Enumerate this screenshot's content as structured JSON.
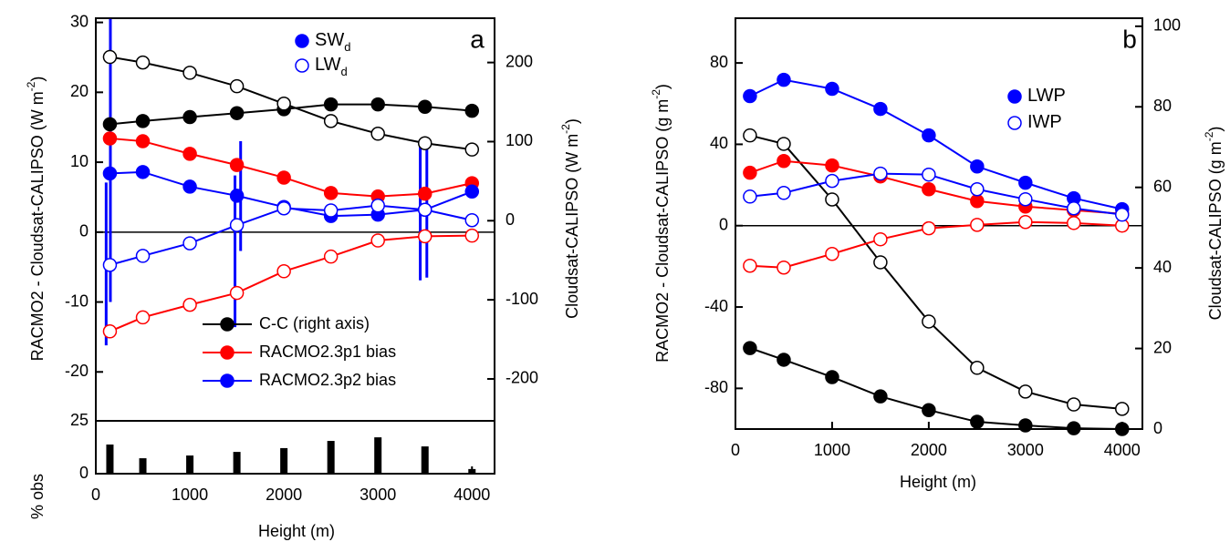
{
  "chart_data": [
    {
      "type": "line",
      "panel_label": "a",
      "xlim": [
        0,
        4240
      ],
      "ylim": [
        -27,
        30.6
      ],
      "yticks": [
        -20,
        -10,
        0,
        10,
        20,
        30
      ],
      "y2lim": [
        -253,
        256
      ],
      "y2ticks": [
        -200,
        -100,
        0,
        100,
        200
      ],
      "zero_line": true,
      "ylabel": [
        "RACMO2 - Cloudsat-CALIPSO (W m",
        "-2",
        ")"
      ],
      "y2label": [
        "Cloudsat-CALIPSO (W m",
        "-2",
        ")"
      ],
      "x": [
        150,
        500,
        1000,
        1500,
        2000,
        2500,
        3000,
        3500,
        4000
      ],
      "series": [
        {
          "color": "#000000",
          "marker": "filled",
          "axis": "y2",
          "values": [
            122,
            126,
            131,
            136,
            141,
            147,
            147,
            144,
            139
          ]
        },
        {
          "color": "#000000",
          "marker": "open",
          "axis": "y2",
          "values": [
            207,
            200,
            187,
            170,
            148,
            126,
            110,
            98,
            90
          ]
        },
        {
          "color": "#ff0000",
          "marker": "filled",
          "values": [
            13.4,
            13.0,
            11.2,
            9.6,
            7.8,
            5.6,
            5.1,
            5.5,
            7.0
          ]
        },
        {
          "color": "#ff0000",
          "marker": "open",
          "values": [
            -14.2,
            -12.2,
            -10.4,
            -8.7,
            -5.6,
            -3.5,
            -1.2,
            -0.6,
            -0.5
          ]
        },
        {
          "color": "#0000ff",
          "marker": "filled",
          "values": [
            8.4,
            8.6,
            6.5,
            5.2,
            3.6,
            2.3,
            2.5,
            3.2,
            5.8
          ]
        },
        {
          "color": "#0000ff",
          "marker": "open",
          "values": [
            -4.7,
            -3.4,
            -1.6,
            1.0,
            3.4,
            3.1,
            3.8,
            3.2,
            1.7
          ]
        }
      ],
      "spread": {
        "color": "#0000ff",
        "x": [
          110,
          155,
          1480,
          1540,
          3450,
          3520
        ],
        "low": [
          -16.2,
          -10,
          -13.6,
          -2.7,
          -6.9,
          -6.5
        ],
        "high": [
          7.1,
          30.5,
          8.1,
          13.0,
          12.7,
          12.7
        ]
      },
      "legend": [
        {
          "label": "C-C (right axis)",
          "color": "#000000"
        },
        {
          "label": "RACMO2.3p1 bias",
          "color": "#ff0000"
        },
        {
          "label": "RACMO2.3p2 bias",
          "color": "#0000ff"
        }
      ],
      "marker_legend": [
        {
          "label": "SW",
          "sub": "d",
          "color": "#0000ff",
          "marker": "filled"
        },
        {
          "label": "LW",
          "sub": "d",
          "color": "#0000ff",
          "marker": "open"
        }
      ]
    },
    {
      "type": "bar",
      "ylabel": "% obs",
      "xlim": [
        0,
        4240
      ],
      "ylim": [
        0,
        25
      ],
      "yticks": [
        0,
        25
      ],
      "xticks": [
        0,
        1000,
        2000,
        3000,
        4000
      ],
      "xlabel": "Height (m)",
      "x": [
        150,
        500,
        1000,
        1500,
        2000,
        2500,
        3000,
        3500,
        4000
      ],
      "values": [
        13.8,
        7.3,
        8.6,
        10.3,
        12.1,
        15.5,
        17.2,
        12.9,
        2.2
      ],
      "color": "#000000"
    },
    {
      "type": "line",
      "panel_label": "b",
      "xlim": [
        0,
        4210
      ],
      "ylim": [
        -100,
        102
      ],
      "yticks": [
        -80,
        -40,
        0,
        40,
        80
      ],
      "y2lim": [
        0,
        102
      ],
      "y2ticks": [
        0,
        20,
        40,
        60,
        80,
        100
      ],
      "zero_line": true,
      "xticks": [
        0,
        1000,
        2000,
        3000,
        4000
      ],
      "xlabel": "Height (m)",
      "ylabel": [
        "RACMO2 - Cloudsat-CALIPSO (g m",
        "-2",
        ")"
      ],
      "y2label": [
        "Cloudsat-CALIPSO (g m",
        "-2",
        ")"
      ],
      "x": [
        150,
        500,
        1000,
        1500,
        2000,
        2500,
        3000,
        3500,
        4000
      ],
      "series": [
        {
          "color": "#000000",
          "marker": "filled",
          "axis": "y2",
          "values": [
            20.1,
            17.2,
            12.9,
            8.1,
            4.7,
            1.8,
            0.9,
            0.2,
            0
          ]
        },
        {
          "color": "#000000",
          "marker": "open",
          "axis": "y2",
          "values": [
            72.9,
            70.8,
            57.0,
            41.4,
            26.7,
            15.2,
            9.3,
            6.1,
            5.0
          ]
        },
        {
          "color": "#ff0000",
          "marker": "filled",
          "values": [
            26.0,
            31.8,
            29.6,
            24.2,
            17.9,
            12.1,
            9.4,
            7.6,
            5.8
          ]
        },
        {
          "color": "#ff0000",
          "marker": "open",
          "values": [
            -19.7,
            -20.6,
            -13.9,
            -6.7,
            -1.3,
            0.4,
            1.8,
            1.3,
            0
          ]
        },
        {
          "color": "#0000ff",
          "marker": "filled",
          "values": [
            63.7,
            71.7,
            67.3,
            57.4,
            44.4,
            29.1,
            21.1,
            13.5,
            8.1
          ]
        },
        {
          "color": "#0000ff",
          "marker": "open",
          "values": [
            14.3,
            16.1,
            22.0,
            25.6,
            25.1,
            17.9,
            13.0,
            8.5,
            5.4
          ]
        }
      ],
      "marker_legend": [
        {
          "label": "LWP",
          "color": "#0000ff",
          "marker": "filled"
        },
        {
          "label": "IWP",
          "color": "#0000ff",
          "marker": "open"
        }
      ]
    }
  ]
}
